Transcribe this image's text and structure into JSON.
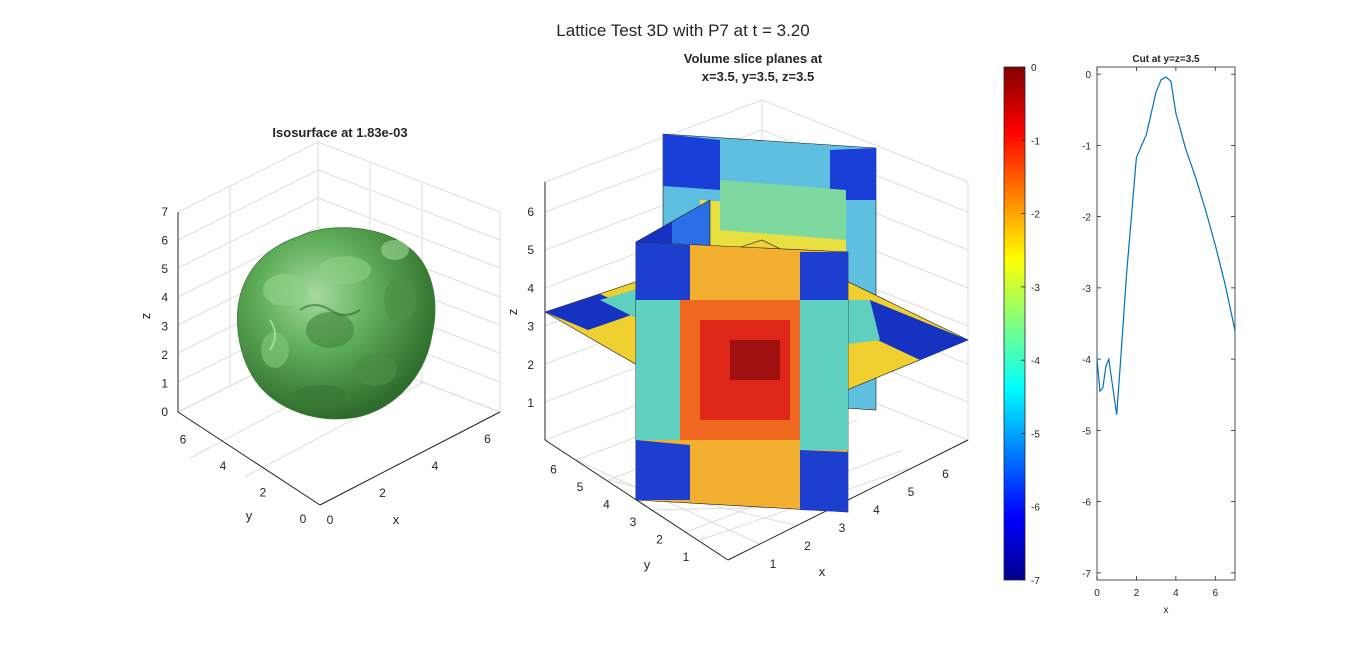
{
  "figure": {
    "suptitle": "Lattice Test 3D with P7 at t = 3.20"
  },
  "panels": {
    "isosurface": {
      "title": "Isosurface at 1.83e-03",
      "xlabel": "x",
      "ylabel": "y",
      "zlabel": "z",
      "x_ticks": [
        "0",
        "2",
        "4",
        "6"
      ],
      "y_ticks": [
        "0",
        "2",
        "4",
        "6"
      ],
      "z_ticks": [
        "0",
        "1",
        "2",
        "3",
        "4",
        "5",
        "6",
        "7"
      ],
      "surface_color": "#5fae5a"
    },
    "slices": {
      "title_line1": "Volume slice planes at",
      "title_line2": "x=3.5, y=3.5, z=3.5",
      "xlabel": "x",
      "ylabel": "y",
      "zlabel": "z",
      "x_ticks": [
        "1",
        "2",
        "3",
        "4",
        "5",
        "6"
      ],
      "y_ticks": [
        "1",
        "2",
        "3",
        "4",
        "5",
        "6"
      ],
      "z_ticks": [
        "1",
        "2",
        "3",
        "4",
        "5",
        "6"
      ],
      "colormap": "jet"
    },
    "colorbar": {
      "ticks": [
        "0",
        "-1",
        "-2",
        "-3",
        "-4",
        "-5",
        "-6",
        "-7"
      ],
      "range": [
        -7,
        0
      ]
    }
  },
  "chart_data": [
    {
      "type": "line",
      "title": "Cut at y=z=3.5",
      "xlabel": "x",
      "ylabel": "",
      "xlim": [
        0,
        7
      ],
      "ylim": [
        -7.1,
        0.1
      ],
      "x_ticks": [
        0,
        2,
        4,
        6
      ],
      "y_ticks": [
        0,
        -1,
        -2,
        -3,
        -4,
        -5,
        -6,
        -7
      ],
      "line_color": "#0072bd",
      "series": [
        {
          "x": [
            0.0,
            0.15,
            0.3,
            0.45,
            0.6,
            0.8,
            1.0,
            1.2,
            1.5,
            2.0,
            2.5,
            3.0,
            3.25,
            3.5,
            3.75,
            4.0,
            4.5,
            5.0,
            5.5,
            6.0,
            6.5,
            7.0
          ],
          "y": [
            -4.0,
            -4.45,
            -4.4,
            -4.1,
            -4.0,
            -4.4,
            -4.78,
            -4.0,
            -2.8,
            -1.17,
            -0.85,
            -0.25,
            -0.08,
            -0.04,
            -0.1,
            -0.55,
            -1.05,
            -1.45,
            -1.9,
            -2.4,
            -2.95,
            -3.6
          ]
        }
      ]
    }
  ]
}
